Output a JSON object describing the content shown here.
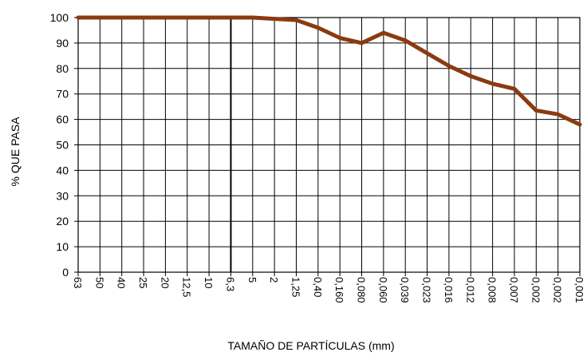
{
  "chart_data": {
    "type": "line",
    "title": "",
    "xlabel": "TAMAÑO DE PARTÍCULAS (mm)",
    "ylabel": "% QUE PASA",
    "ylim": [
      0,
      100
    ],
    "yticks": [
      0,
      10,
      20,
      30,
      40,
      50,
      60,
      70,
      80,
      90,
      100
    ],
    "categories": [
      "63",
      "50",
      "40",
      "25",
      "20",
      "12,5",
      "10",
      "6,3",
      "5",
      "2",
      "1,25",
      "0,40",
      "0,160",
      "0,080",
      "0,060",
      "0,039",
      "0,023",
      "0,016",
      "0,012",
      "0,008",
      "0,007",
      "0,002",
      "0,002",
      "0,001"
    ],
    "values": [
      100,
      100,
      100,
      100,
      100,
      100,
      100,
      100,
      100,
      99.5,
      99,
      96,
      92,
      90,
      94,
      91,
      86,
      81,
      77,
      74,
      72,
      63.5,
      62,
      58
    ],
    "grid": true,
    "line_color": "#8b3a10"
  }
}
